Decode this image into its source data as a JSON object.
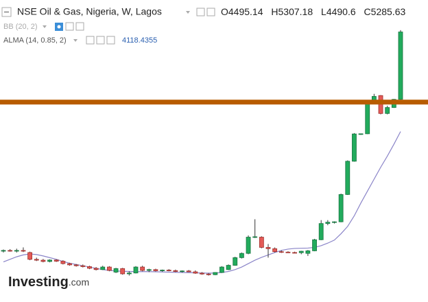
{
  "chart_data": {
    "type": "candlestick",
    "title": "NSE Oil & Gas, Nigeria, W, Lagos",
    "ohlc_labels": [
      "O",
      "H",
      "L",
      "C"
    ],
    "candles": [
      [
        2716,
        2735,
        2700,
        2724
      ],
      [
        2724,
        2740,
        2710,
        2716
      ],
      [
        2716,
        2745,
        2700,
        2724
      ],
      [
        2724,
        2760,
        2705,
        2716
      ],
      [
        2700,
        2710,
        2610,
        2620
      ],
      [
        2620,
        2640,
        2600,
        2610
      ],
      [
        2610,
        2625,
        2585,
        2595
      ],
      [
        2595,
        2620,
        2585,
        2612
      ],
      [
        2612,
        2620,
        2590,
        2598
      ],
      [
        2598,
        2610,
        2560,
        2570
      ],
      [
        2570,
        2580,
        2545,
        2555
      ],
      [
        2555,
        2565,
        2535,
        2545
      ],
      [
        2545,
        2560,
        2525,
        2535
      ],
      [
        2535,
        2545,
        2505,
        2515
      ],
      [
        2515,
        2530,
        2490,
        2500
      ],
      [
        2500,
        2545,
        2495,
        2530
      ],
      [
        2530,
        2540,
        2480,
        2490
      ],
      [
        2470,
        2520,
        2460,
        2512
      ],
      [
        2512,
        2520,
        2440,
        2450
      ],
      [
        2450,
        2480,
        2430,
        2460
      ],
      [
        2460,
        2540,
        2455,
        2530
      ],
      [
        2530,
        2545,
        2480,
        2490
      ],
      [
        2490,
        2510,
        2470,
        2500
      ],
      [
        2500,
        2510,
        2478,
        2486
      ],
      [
        2486,
        2500,
        2475,
        2494
      ],
      [
        2494,
        2505,
        2480,
        2488
      ],
      [
        2488,
        2500,
        2470,
        2478
      ],
      [
        2478,
        2490,
        2465,
        2484
      ],
      [
        2484,
        2495,
        2470,
        2474
      ],
      [
        2474,
        2490,
        2450,
        2458
      ],
      [
        2458,
        2470,
        2440,
        2448
      ],
      [
        2448,
        2460,
        2430,
        2440
      ],
      [
        2440,
        2470,
        2435,
        2466
      ],
      [
        2466,
        2540,
        2460,
        2530
      ],
      [
        2500,
        2560,
        2495,
        2550
      ],
      [
        2550,
        2650,
        2545,
        2640
      ],
      [
        2640,
        2700,
        2630,
        2690
      ],
      [
        2690,
        2900,
        2680,
        2880
      ],
      [
        2880,
        3090,
        2870,
        2885
      ],
      [
        2880,
        2890,
        2750,
        2760
      ],
      [
        2760,
        2800,
        2640,
        2745
      ],
      [
        2745,
        2760,
        2700,
        2710
      ],
      [
        2710,
        2725,
        2695,
        2705
      ],
      [
        2705,
        2715,
        2695,
        2700
      ],
      [
        2700,
        2710,
        2690,
        2698
      ],
      [
        2698,
        2720,
        2680,
        2715
      ],
      [
        2690,
        2730,
        2660,
        2720
      ],
      [
        2720,
        2860,
        2715,
        2850
      ],
      [
        2850,
        3080,
        2845,
        3040
      ],
      [
        3040,
        3080,
        3020,
        3055
      ],
      [
        3055,
        3065,
        3040,
        3060
      ],
      [
        3060,
        3390,
        3055,
        3380
      ],
      [
        3380,
        3780,
        3375,
        3770
      ],
      [
        3770,
        4100,
        3765,
        4090
      ],
      [
        4090,
        4095,
        4080,
        4092
      ],
      [
        4092,
        4460,
        4088,
        4450
      ],
      [
        4450,
        4560,
        4440,
        4530
      ],
      [
        4540,
        4545,
        4320,
        4330
      ],
      [
        4330,
        4420,
        4320,
        4400
      ],
      [
        4400,
        4500,
        4395,
        4495
      ],
      [
        4495.14,
        5307.18,
        4490.6,
        5285.63
      ]
    ],
    "up_color": "#22ab5d",
    "down_color": "#e35a57",
    "ylim": [
      2120,
      5660
    ],
    "hline": {
      "value": 4463,
      "color": "#b85c00"
    },
    "indicators": [
      {
        "name": "BB (20, 2)"
      },
      {
        "name": "ALMA (14, 0.85, 2)",
        "color": "#8a84c8",
        "values": [
          2590,
          2620,
          2650,
          2672,
          2683,
          2676,
          2660,
          2640,
          2620,
          2595,
          2575,
          2560,
          2545,
          2530,
          2515,
          2500,
          2490,
          2484,
          2480,
          2478,
          2476,
          2476,
          2476,
          2474,
          2472,
          2470,
          2468,
          2466,
          2464,
          2462,
          2460,
          2458,
          2460,
          2466,
          2478,
          2500,
          2530,
          2570,
          2610,
          2643,
          2672,
          2700,
          2725,
          2740,
          2748,
          2750,
          2752,
          2760,
          2780,
          2810,
          2846,
          2920,
          3006,
          3130,
          3280,
          3420,
          3560,
          3700,
          3830,
          3970,
          4118.4355
        ]
      }
    ]
  },
  "logo": {
    "text": "Investing",
    "suffix": ".com"
  }
}
